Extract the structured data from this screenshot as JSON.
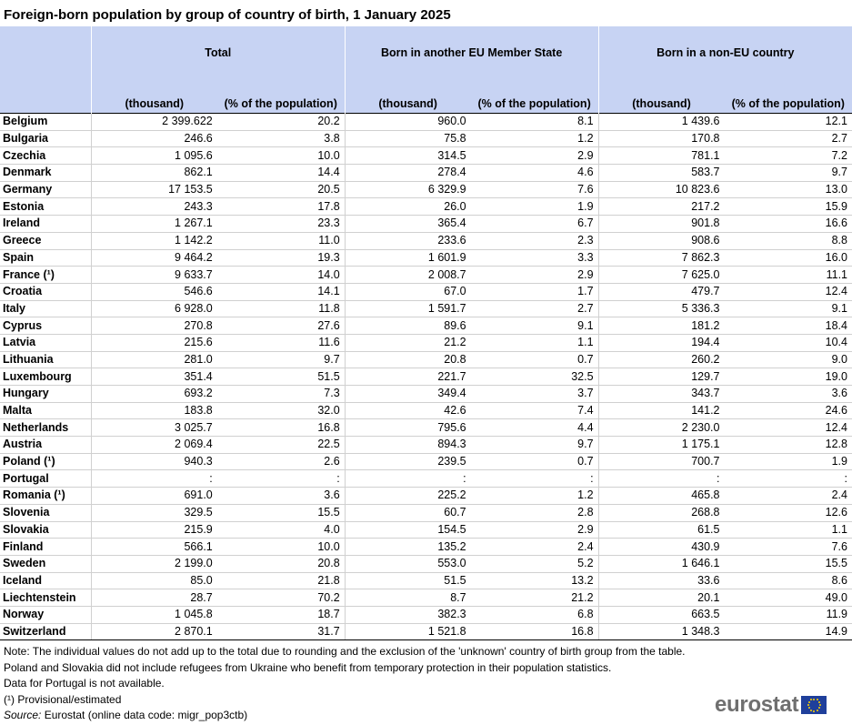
{
  "title": "Foreign-born population by group of country of birth, 1 January 2025",
  "chart_data": {
    "type": "table",
    "title": "Foreign-born population by group of country of birth, 1 January 2025",
    "column_groups": [
      "Total",
      "Born in another EU Member State",
      "Born in a non-EU country"
    ],
    "sub_headers": [
      "(thousand)",
      "(% of the population)",
      "(thousand)",
      "(% of the population)",
      "(thousand)",
      "(% of the population)"
    ],
    "rows": [
      {
        "country": "Belgium",
        "values": [
          "2 399.622",
          "20.2",
          "960.0",
          "8.1",
          "1 439.6",
          "12.1"
        ]
      },
      {
        "country": "Bulgaria",
        "values": [
          "246.6",
          "3.8",
          "75.8",
          "1.2",
          "170.8",
          "2.7"
        ]
      },
      {
        "country": "Czechia",
        "values": [
          "1 095.6",
          "10.0",
          "314.5",
          "2.9",
          "781.1",
          "7.2"
        ]
      },
      {
        "country": "Denmark",
        "values": [
          "862.1",
          "14.4",
          "278.4",
          "4.6",
          "583.7",
          "9.7"
        ]
      },
      {
        "country": "Germany",
        "values": [
          "17 153.5",
          "20.5",
          "6 329.9",
          "7.6",
          "10 823.6",
          "13.0"
        ]
      },
      {
        "country": "Estonia",
        "values": [
          "243.3",
          "17.8",
          "26.0",
          "1.9",
          "217.2",
          "15.9"
        ]
      },
      {
        "country": "Ireland",
        "values": [
          "1 267.1",
          "23.3",
          "365.4",
          "6.7",
          "901.8",
          "16.6"
        ]
      },
      {
        "country": "Greece",
        "values": [
          "1 142.2",
          "11.0",
          "233.6",
          "2.3",
          "908.6",
          "8.8"
        ]
      },
      {
        "country": "Spain",
        "values": [
          "9 464.2",
          "19.3",
          "1 601.9",
          "3.3",
          "7 862.3",
          "16.0"
        ]
      },
      {
        "country": "France (¹)",
        "values": [
          "9 633.7",
          "14.0",
          "2 008.7",
          "2.9",
          "7 625.0",
          "11.1"
        ]
      },
      {
        "country": "Croatia",
        "values": [
          "546.6",
          "14.1",
          "67.0",
          "1.7",
          "479.7",
          "12.4"
        ]
      },
      {
        "country": "Italy",
        "values": [
          "6 928.0",
          "11.8",
          "1 591.7",
          "2.7",
          "5 336.3",
          "9.1"
        ]
      },
      {
        "country": "Cyprus",
        "values": [
          "270.8",
          "27.6",
          "89.6",
          "9.1",
          "181.2",
          "18.4"
        ]
      },
      {
        "country": "Latvia",
        "values": [
          "215.6",
          "11.6",
          "21.2",
          "1.1",
          "194.4",
          "10.4"
        ]
      },
      {
        "country": "Lithuania",
        "values": [
          "281.0",
          "9.7",
          "20.8",
          "0.7",
          "260.2",
          "9.0"
        ]
      },
      {
        "country": "Luxembourg",
        "values": [
          "351.4",
          "51.5",
          "221.7",
          "32.5",
          "129.7",
          "19.0"
        ]
      },
      {
        "country": "Hungary",
        "values": [
          "693.2",
          "7.3",
          "349.4",
          "3.7",
          "343.7",
          "3.6"
        ]
      },
      {
        "country": "Malta",
        "values": [
          "183.8",
          "32.0",
          "42.6",
          "7.4",
          "141.2",
          "24.6"
        ]
      },
      {
        "country": "Netherlands",
        "values": [
          "3 025.7",
          "16.8",
          "795.6",
          "4.4",
          "2 230.0",
          "12.4"
        ]
      },
      {
        "country": "Austria",
        "values": [
          "2 069.4",
          "22.5",
          "894.3",
          "9.7",
          "1 175.1",
          "12.8"
        ]
      },
      {
        "country": "Poland (¹)",
        "values": [
          "940.3",
          "2.6",
          "239.5",
          "0.7",
          "700.7",
          "1.9"
        ]
      },
      {
        "country": "Portugal",
        "values": [
          ":",
          ":",
          ":",
          ":",
          ":",
          ":"
        ]
      },
      {
        "country": "Romania (¹)",
        "values": [
          "691.0",
          "3.6",
          "225.2",
          "1.2",
          "465.8",
          "2.4"
        ]
      },
      {
        "country": "Slovenia",
        "values": [
          "329.5",
          "15.5",
          "60.7",
          "2.8",
          "268.8",
          "12.6"
        ]
      },
      {
        "country": "Slovakia",
        "values": [
          "215.9",
          "4.0",
          "154.5",
          "2.9",
          "61.5",
          "1.1"
        ]
      },
      {
        "country": "Finland",
        "values": [
          "566.1",
          "10.0",
          "135.2",
          "2.4",
          "430.9",
          "7.6"
        ]
      },
      {
        "country": "Sweden",
        "values": [
          "2 199.0",
          "20.8",
          "553.0",
          "5.2",
          "1 646.1",
          "15.5"
        ]
      },
      {
        "country": "Iceland",
        "values": [
          "85.0",
          "21.8",
          "51.5",
          "13.2",
          "33.6",
          "8.6"
        ]
      },
      {
        "country": "Liechtenstein",
        "values": [
          "28.7",
          "70.2",
          "8.7",
          "21.2",
          "20.1",
          "49.0"
        ]
      },
      {
        "country": "Norway",
        "values": [
          "1 045.8",
          "18.7",
          "382.3",
          "6.8",
          "663.5",
          "11.9"
        ]
      },
      {
        "country": "Switzerland",
        "values": [
          "2 870.1",
          "31.7",
          "1 521.8",
          "16.8",
          "1 348.3",
          "14.9"
        ]
      }
    ]
  },
  "notes": {
    "note1": "Note: The individual values do not add up to the total due to rounding and the exclusion of the 'unknown' country of birth group from the table.",
    "note2": "Poland and Slovakia did not include refugees from Ukraine who benefit from temporary protection in their population statistics.",
    "note3": "Data for Portugal is not available.",
    "footnote": "(¹) Provisional/estimated",
    "source_label": "Source:",
    "source_text": " Eurostat (online data code: migr_pop3ctb)"
  },
  "logo": {
    "text": "eurostat",
    "flag_color": "#1f3f9b",
    "star_color": "#ffd400"
  },
  "colors": {
    "header_bg": "#c7d3f3"
  }
}
